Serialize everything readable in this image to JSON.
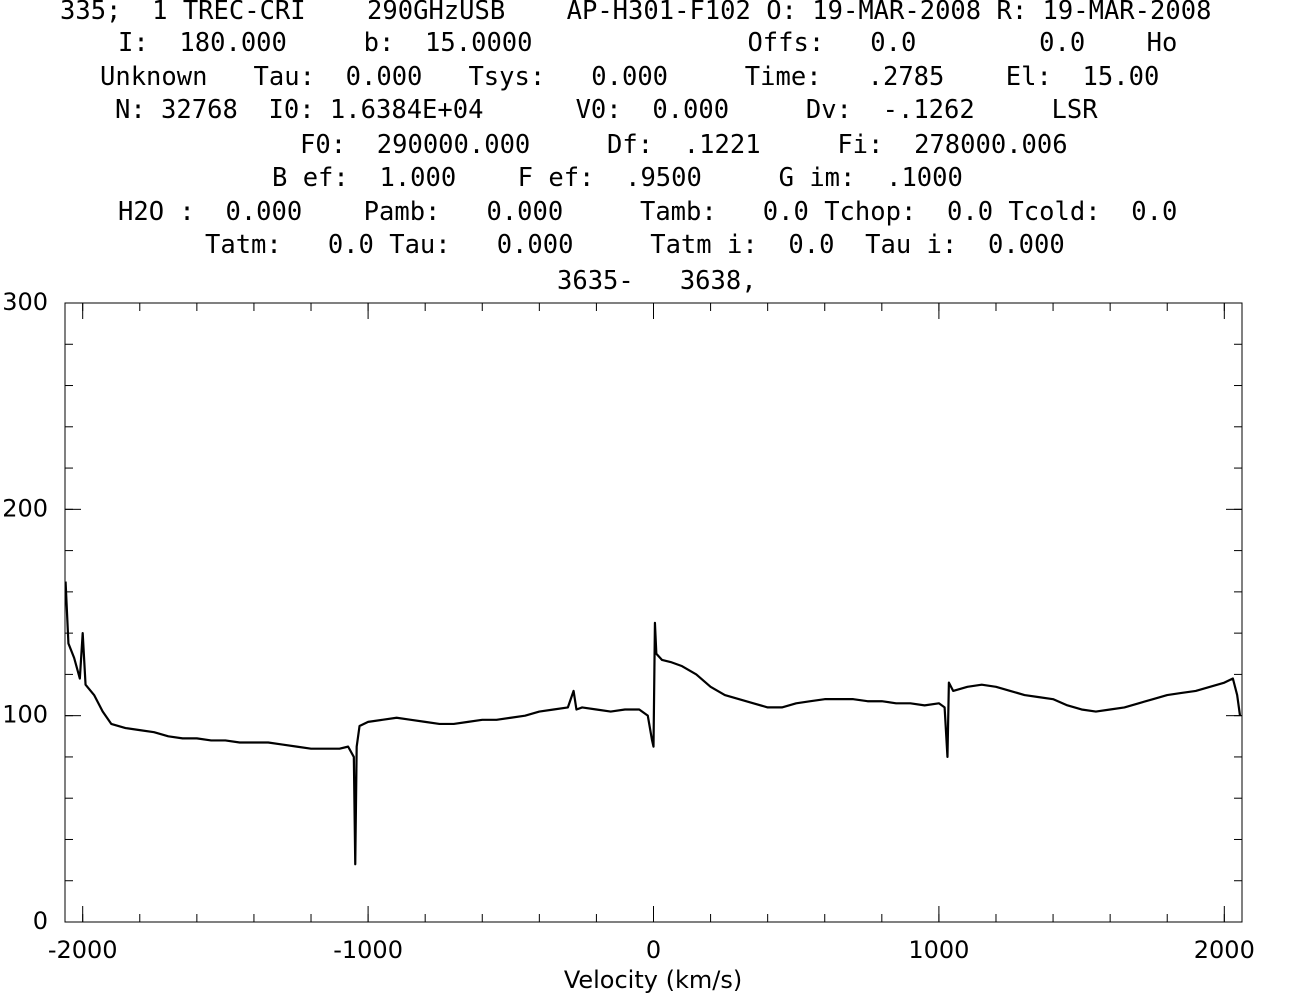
{
  "chart_data": {
    "type": "line",
    "header": [
      "335;  1 TREC-CRI    290GHzUSB    AP-H301-F102 O: 19-MAR-2008 R: 19-MAR-2008",
      "I:  180.000     b:  15.0000              Offs:   0.0        0.0    Ho",
      "Unknown   Tau:  0.000   Tsys:   0.000     Time:   .2785    El:  15.00",
      "N: 32768  I0: 1.6384E+04      V0:  0.000     Dv:  -.1262     LSR",
      "F0:  290000.000     Df:  .1221     Fi:  278000.006",
      "B ef:  1.000    F ef:  .9500     G im:  .1000",
      "H2O :  0.000    Pamb:   0.000     Tamb:   0.0 Tchop:  0.0 Tcold:  0.0",
      "Tatm:   0.0 Tau:   0.000     Tatm i:  0.0  Tau i:  0.000",
      "3635-   3638,"
    ],
    "xlabel": "Velocity (km/s)",
    "x": [
      -2060,
      -2050,
      -2030,
      -2010,
      -2000,
      -1990,
      -1960,
      -1930,
      -1900,
      -1850,
      -1800,
      -1750,
      -1700,
      -1650,
      -1600,
      -1550,
      -1500,
      -1450,
      -1400,
      -1350,
      -1300,
      -1250,
      -1200,
      -1150,
      -1100,
      -1070,
      -1050,
      -1045,
      -1040,
      -1030,
      -1000,
      -950,
      -900,
      -850,
      -800,
      -750,
      -700,
      -650,
      -600,
      -550,
      -500,
      -450,
      -400,
      -350,
      -300,
      -280,
      -270,
      -250,
      -200,
      -150,
      -100,
      -50,
      -20,
      -5,
      0,
      5,
      10,
      30,
      60,
      100,
      150,
      200,
      250,
      300,
      350,
      400,
      450,
      500,
      550,
      600,
      650,
      700,
      750,
      800,
      850,
      900,
      950,
      1000,
      1020,
      1030,
      1035,
      1050,
      1100,
      1150,
      1200,
      1250,
      1300,
      1350,
      1400,
      1450,
      1500,
      1550,
      1600,
      1650,
      1700,
      1750,
      1800,
      1850,
      1900,
      1950,
      2000,
      2030,
      2045,
      2055
    ],
    "series": [
      {
        "name": "spectrum",
        "color": "#000000",
        "values": [
          165,
          135,
          128,
          118,
          140,
          115,
          110,
          102,
          96,
          94,
          93,
          92,
          90,
          89,
          89,
          88,
          88,
          87,
          87,
          87,
          86,
          85,
          84,
          84,
          84,
          85,
          80,
          28,
          85,
          95,
          97,
          98,
          99,
          98,
          97,
          96,
          96,
          97,
          98,
          98,
          99,
          100,
          102,
          103,
          104,
          112,
          103,
          104,
          103,
          102,
          103,
          103,
          100,
          88,
          85,
          145,
          130,
          127,
          126,
          124,
          120,
          114,
          110,
          108,
          106,
          104,
          104,
          106,
          107,
          108,
          108,
          108,
          107,
          107,
          106,
          106,
          105,
          106,
          104,
          80,
          116,
          112,
          114,
          115,
          114,
          112,
          110,
          109,
          108,
          105,
          103,
          102,
          103,
          104,
          106,
          108,
          110,
          111,
          112,
          114,
          116,
          118,
          110,
          100
        ]
      }
    ],
    "xlim": [
      -2062,
      2062
    ],
    "ylim": [
      0,
      300
    ],
    "xticks": [
      -2000,
      -1000,
      0,
      1000,
      2000
    ],
    "yticks": [
      0,
      100,
      200,
      300
    ],
    "xminorticks": [
      -2000,
      -1800,
      -1600,
      -1400,
      -1200,
      -1000,
      -800,
      -600,
      -400,
      -200,
      0,
      200,
      400,
      600,
      800,
      1000,
      1200,
      1400,
      1600,
      1800,
      2000
    ],
    "yminorticks": [
      0,
      20,
      40,
      60,
      80,
      100,
      120,
      140,
      160,
      180,
      200,
      220,
      240,
      260,
      280,
      300
    ]
  }
}
